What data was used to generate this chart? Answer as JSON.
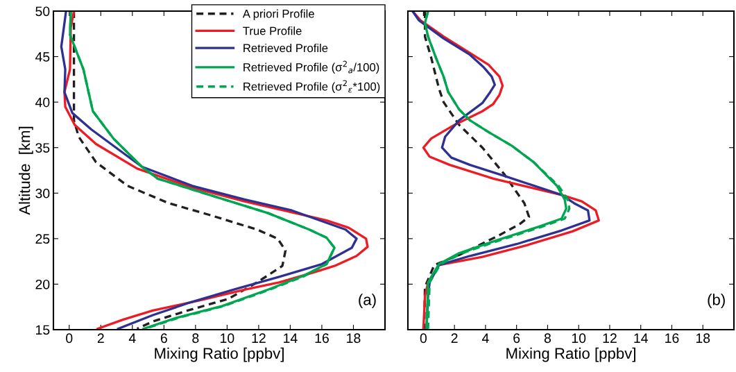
{
  "chart_data": [
    {
      "type": "line",
      "xlabel": "Mixing Ratio [ppbv]",
      "ylabel": "Altitude  [km]",
      "xlim": [
        -1,
        20
      ],
      "xticks": [
        0,
        2,
        4,
        6,
        8,
        10,
        12,
        14,
        16,
        18
      ],
      "ylim": [
        15,
        50
      ],
      "yticks": [
        15,
        20,
        25,
        30,
        35,
        40,
        45,
        50
      ],
      "grid": false,
      "legend": "top right",
      "annotations": [
        "(a)"
      ],
      "series": [
        {
          "name": "A priori Profile",
          "color": "#231f20",
          "line_style": "dashed",
          "x": [
            0.3,
            0.3,
            0.3,
            0.6,
            1.7,
            3.7,
            6.3,
            8.9,
            11.9,
            13.2,
            13.7,
            13.5,
            11.9,
            10.1,
            7.5,
            5.3,
            4.3
          ],
          "values": [
            50,
            44,
            38,
            36.2,
            33.4,
            30.8,
            28.9,
            27.6,
            26.0,
            25.0,
            23.7,
            22.0,
            20.2,
            18.4,
            17.1,
            15.9,
            15.1
          ]
        },
        {
          "name": "True Profile",
          "color": "#ed1c24",
          "line_style": "solid",
          "x": [
            0.3,
            0.1,
            0.05,
            -0.3,
            -0.25,
            0.35,
            1.7,
            4.3,
            7.8,
            11.1,
            14.1,
            16.3,
            17.7,
            18.8,
            18.9,
            18.2,
            16.8,
            15.5,
            13.3,
            11.1,
            8.2,
            5.3,
            3.4,
            1.8
          ],
          "values": [
            50,
            48.2,
            43.6,
            41.1,
            39.5,
            37.5,
            35.4,
            32.7,
            30.6,
            29.1,
            27.9,
            27.0,
            26.2,
            25.0,
            24.1,
            23.1,
            22.0,
            21.3,
            20.2,
            19.4,
            18.2,
            17.1,
            16.1,
            15.1
          ]
        },
        {
          "name": "Retrieved Profile",
          "color": "#2e3192",
          "line_style": "solid",
          "x": [
            -0.2,
            -0.5,
            -0.25,
            -0.3,
            0.2,
            1.4,
            4.6,
            7.8,
            11.1,
            14.1,
            17.5,
            18.2,
            17.9,
            16.0,
            13.3,
            10.4,
            7.5,
            5.3,
            3.1
          ],
          "values": [
            50,
            46.1,
            43.6,
            41.1,
            38.8,
            37.0,
            32.9,
            30.8,
            29.3,
            28.1,
            26.0,
            25.0,
            24.0,
            22.2,
            20.8,
            19.4,
            17.9,
            16.6,
            15.1
          ]
        },
        {
          "name": "Retrieved Profile (σ$^{2}$$_{a}$/100)",
          "color": "#00a651",
          "line_style": "solid",
          "x": [
            0.1,
            0.05,
            0.9,
            1.5,
            2.8,
            4.6,
            5.6,
            8.9,
            12.6,
            15.2,
            16.3,
            16.8,
            16.3,
            14.8,
            12.6,
            9.7,
            6.8,
            4.7
          ],
          "values": [
            50,
            47.4,
            43.6,
            39.0,
            36.0,
            32.9,
            31.6,
            29.8,
            27.8,
            26.0,
            25.1,
            24.0,
            22.2,
            20.9,
            19.4,
            17.6,
            16.3,
            15.1
          ]
        },
        {
          "name": "Retrieved Profile (σ$^{2}$$_{ε}$*100)",
          "color": "#00a651",
          "line_style": "dashed",
          "x": [
            0.1,
            0.05,
            0.9,
            1.5,
            2.8,
            4.6,
            5.6,
            8.9,
            12.6,
            15.2,
            16.3,
            16.8,
            16.3,
            14.9,
            12.7,
            9.8,
            6.9,
            4.8
          ],
          "values": [
            50,
            47.4,
            43.6,
            39.0,
            36.0,
            32.9,
            31.6,
            29.8,
            27.8,
            26.0,
            25.1,
            24.0,
            22.2,
            20.9,
            19.4,
            17.6,
            16.3,
            15.1
          ]
        }
      ]
    },
    {
      "type": "line",
      "xlabel": "Mixing Ratio [ppbv]",
      "xlim": [
        -1,
        20
      ],
      "xticks": [
        0,
        2,
        4,
        6,
        8,
        10,
        12,
        14,
        16,
        18
      ],
      "ylim": [
        15,
        50
      ],
      "yticks": [
        15,
        20,
        25,
        30,
        35,
        40,
        45,
        50
      ],
      "tick_labels": "x",
      "grid": false,
      "annotations": [
        "(b)"
      ],
      "series": [
        {
          "color": "#231f20",
          "line_style": "dashed",
          "x": [
            0.1,
            0.1,
            0.1,
            0.5,
            1.0,
            1.3,
            2.3,
            3.8,
            5.2,
            5.8,
            6.5,
            6.8,
            6.2,
            4.8,
            2.3,
            0.7,
            0.1,
            0.05
          ],
          "values": [
            50,
            48.7,
            47.2,
            44.9,
            41.5,
            40.0,
            37.5,
            35.0,
            32.1,
            30.6,
            28.9,
            27.4,
            26.6,
            25.3,
            23.2,
            22.1,
            19.7,
            15.1
          ]
        },
        {
          "color": "#ed1c24",
          "line_style": "solid",
          "x": [
            -0.7,
            -0.2,
            1.3,
            3.0,
            4.2,
            4.9,
            5.1,
            4.9,
            4.5,
            3.8,
            2.0,
            0.5,
            0.0,
            0.4,
            1.7,
            4.5,
            8.9,
            10.2,
            11.1,
            11.3,
            9.6,
            6.7,
            3.8,
            1.0,
            0.3,
            0.1,
            0.0
          ],
          "values": [
            50,
            49.0,
            47.2,
            45.4,
            44.1,
            42.8,
            41.8,
            40.8,
            39.8,
            39.0,
            37.5,
            36.0,
            35.0,
            34.0,
            33.1,
            31.6,
            29.8,
            29.1,
            28.1,
            27.0,
            25.8,
            24.3,
            23.0,
            22.1,
            20.2,
            18.7,
            15.1
          ]
        },
        {
          "color": "#2e3192",
          "line_style": "solid",
          "x": [
            -0.7,
            -0.3,
            1.3,
            3.0,
            3.9,
            4.4,
            4.6,
            4.3,
            3.8,
            2.3,
            1.4,
            1.2,
            1.8,
            3.0,
            5.2,
            8.9,
            9.7,
            10.6,
            10.7,
            8.9,
            6.0,
            3.0,
            1.0,
            0.4,
            0.3,
            0.2
          ],
          "values": [
            50,
            49.0,
            47.0,
            45.2,
            43.8,
            42.8,
            41.9,
            41.1,
            39.9,
            38.0,
            36.2,
            35.0,
            33.9,
            33.1,
            31.9,
            29.8,
            28.9,
            28.1,
            27.0,
            25.9,
            24.4,
            23.1,
            22.1,
            20.2,
            18.7,
            15.1
          ]
        },
        {
          "color": "#00a651",
          "line_style": "solid",
          "x": [
            0.3,
            0.1,
            0.3,
            0.8,
            1.3,
            1.6,
            2.3,
            3.0,
            4.2,
            5.7,
            7.1,
            8.6,
            9.1,
            9.2,
            8.9,
            7.4,
            4.5,
            2.3,
            1.0,
            0.3,
            0.2
          ],
          "values": [
            50,
            48.7,
            47.2,
            44.9,
            42.8,
            41.1,
            39.2,
            38.0,
            36.7,
            35.2,
            33.4,
            30.8,
            29.3,
            28.3,
            27.2,
            26.3,
            24.7,
            23.4,
            22.2,
            20.2,
            15.1
          ]
        },
        {
          "color": "#00a651",
          "line_style": "dashed",
          "x": [
            0.3,
            0.1,
            0.3,
            0.8,
            1.3,
            1.6,
            2.3,
            3.0,
            4.2,
            5.7,
            7.1,
            8.7,
            9.3,
            9.4,
            9.1,
            7.6,
            4.7,
            2.5,
            1.1,
            0.4,
            0.3
          ],
          "values": [
            50,
            48.7,
            47.2,
            44.9,
            42.8,
            41.1,
            39.2,
            38.0,
            36.7,
            35.2,
            33.4,
            30.8,
            29.3,
            28.3,
            27.2,
            26.3,
            24.7,
            23.4,
            22.2,
            20.2,
            15.1
          ]
        }
      ]
    }
  ]
}
